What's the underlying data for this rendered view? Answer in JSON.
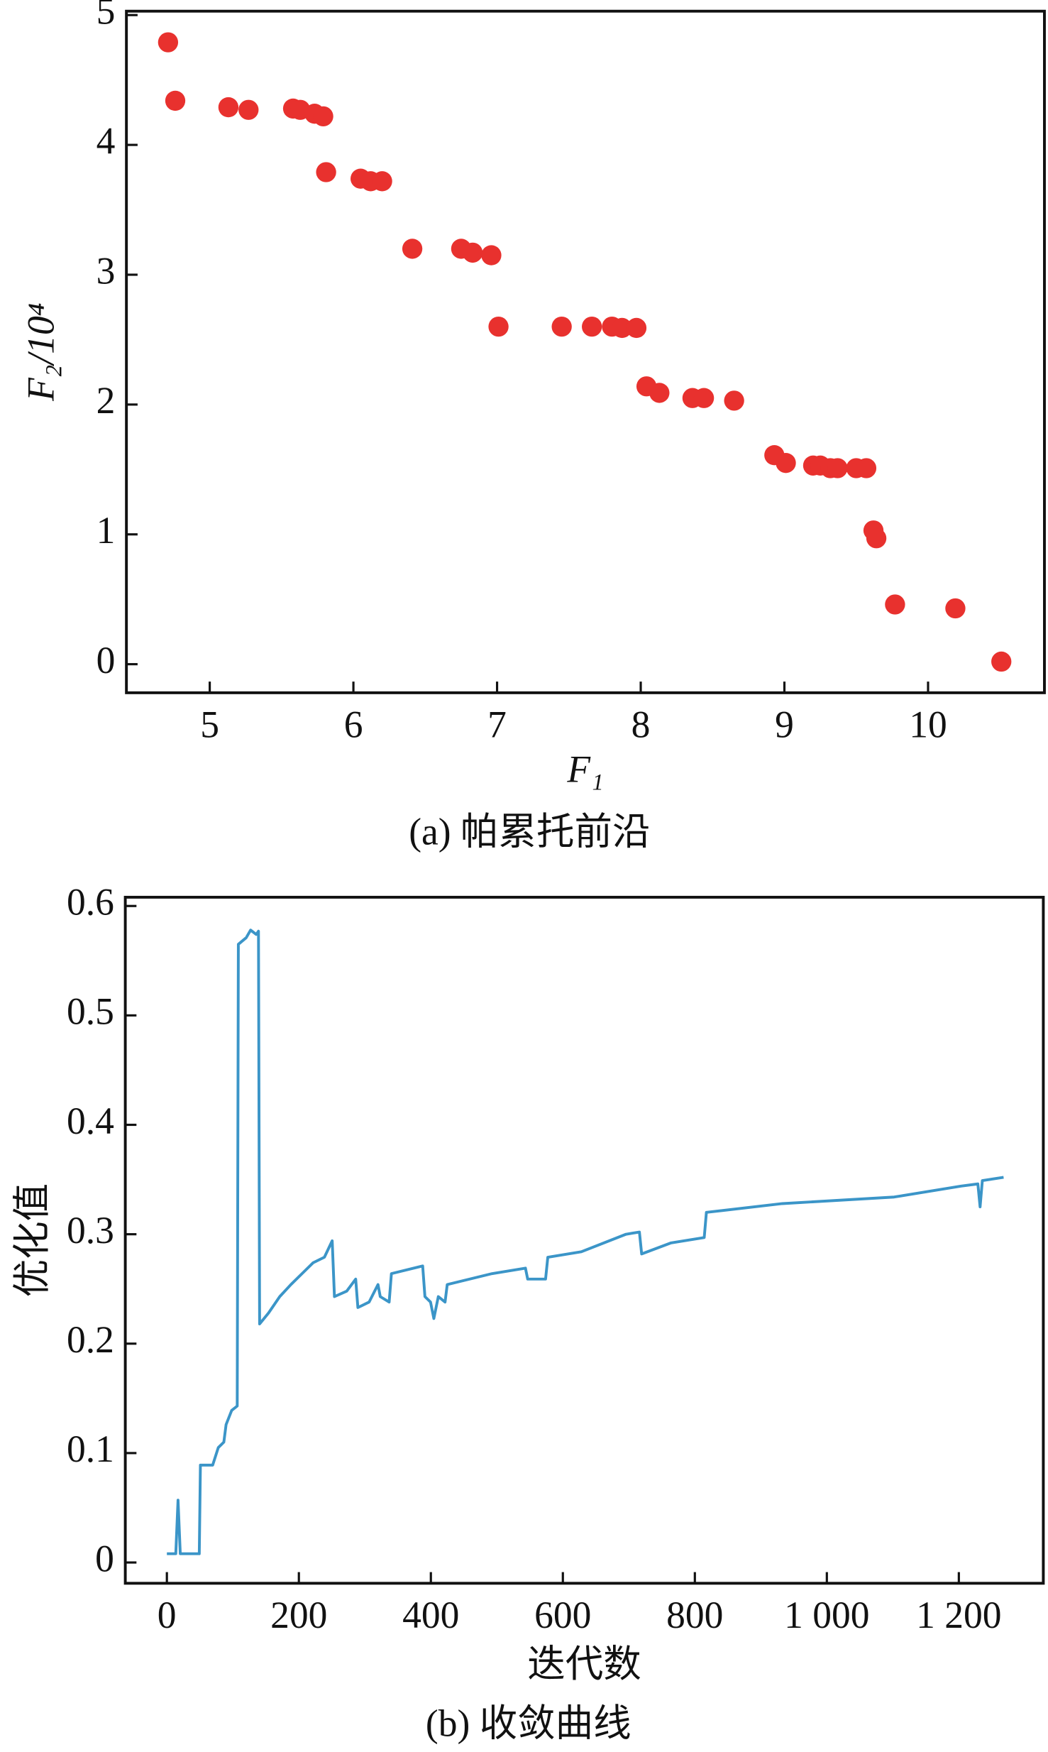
{
  "chart_data": [
    {
      "type": "scatter",
      "xlabel": "F₁",
      "ylabel": "F₂/10⁴",
      "caption": "(a) 帕累托前沿",
      "color": "#e8312e",
      "xlim": [
        4.42,
        10.81
      ],
      "ylim": [
        -0.22,
        5.03
      ],
      "xticks": [
        5,
        6,
        7,
        8,
        9,
        10
      ],
      "yticks": [
        0,
        1,
        2,
        3,
        4,
        5
      ],
      "x": [
        4.71,
        4.76,
        5.13,
        5.27,
        5.58,
        5.63,
        5.73,
        5.79,
        5.81,
        6.05,
        6.12,
        6.2,
        6.41,
        6.75,
        6.83,
        6.96,
        7.01,
        7.45,
        7.66,
        7.8,
        7.87,
        7.97,
        8.04,
        8.13,
        8.36,
        8.44,
        8.65,
        8.93,
        9.01,
        9.2,
        9.25,
        9.32,
        9.37,
        9.5,
        9.57,
        9.62,
        9.64,
        9.77,
        10.19,
        10.51
      ],
      "values": [
        4.79,
        4.34,
        4.29,
        4.27,
        4.28,
        4.27,
        4.24,
        4.22,
        3.79,
        3.74,
        3.72,
        3.72,
        3.2,
        3.2,
        3.17,
        3.15,
        2.6,
        2.6,
        2.6,
        2.6,
        2.59,
        2.59,
        2.14,
        2.09,
        2.05,
        2.05,
        2.03,
        1.61,
        1.55,
        1.53,
        1.53,
        1.51,
        1.51,
        1.51,
        1.51,
        1.03,
        0.97,
        0.46,
        0.43,
        0.02
      ]
    },
    {
      "type": "line",
      "xlabel": "迭代数",
      "ylabel": "优化值",
      "caption": "(b) 收敛曲线",
      "color": "#3b95c8",
      "xlim": [
        -63,
        1328
      ],
      "ylim": [
        -0.019,
        0.608
      ],
      "xticks": [
        0,
        200,
        400,
        600,
        800,
        {
          "value": 1000,
          "label": "1 000"
        },
        {
          "value": 1200,
          "label": "1 200"
        }
      ],
      "yticks": [
        0,
        0.1,
        0.2,
        0.3,
        0.4,
        0.5,
        0.6
      ],
      "x": [
        0,
        13.5,
        16.9,
        20.3,
        49.1,
        50.8,
        69.4,
        77.9,
        86.3,
        89.7,
        98.2,
        106.6,
        108.3,
        120.2,
        126.9,
        135.4,
        138.8,
        140.5,
        154,
        171,
        187.9,
        204.8,
        221.7,
        238.7,
        250.5,
        253.9,
        272.5,
        286.1,
        289.4,
        306.4,
        319.9,
        323.3,
        336.8,
        340.2,
        387.6,
        391,
        399.5,
        404.5,
        411.3,
        421.5,
        424.8,
        492.6,
        543.3,
        546.7,
        573.8,
        577.2,
        628,
        695.7,
        716,
        719.4,
        763.4,
        814.2,
        817.5,
        932.6,
        1101.9,
        1203.5,
        1228.8,
        1232.2,
        1235.6,
        1267.8
      ],
      "values": [
        0.008,
        0.008,
        0.057,
        0.008,
        0.008,
        0.089,
        0.089,
        0.105,
        0.11,
        0.126,
        0.139,
        0.143,
        0.565,
        0.571,
        0.578,
        0.574,
        0.577,
        0.218,
        0.228,
        0.243,
        0.254,
        0.264,
        0.274,
        0.279,
        0.294,
        0.243,
        0.248,
        0.259,
        0.233,
        0.238,
        0.254,
        0.243,
        0.238,
        0.264,
        0.271,
        0.243,
        0.238,
        0.223,
        0.243,
        0.238,
        0.254,
        0.264,
        0.269,
        0.259,
        0.259,
        0.279,
        0.284,
        0.3,
        0.302,
        0.282,
        0.292,
        0.297,
        0.32,
        0.328,
        0.334,
        0.344,
        0.346,
        0.325,
        0.349,
        0.352
      ]
    }
  ]
}
